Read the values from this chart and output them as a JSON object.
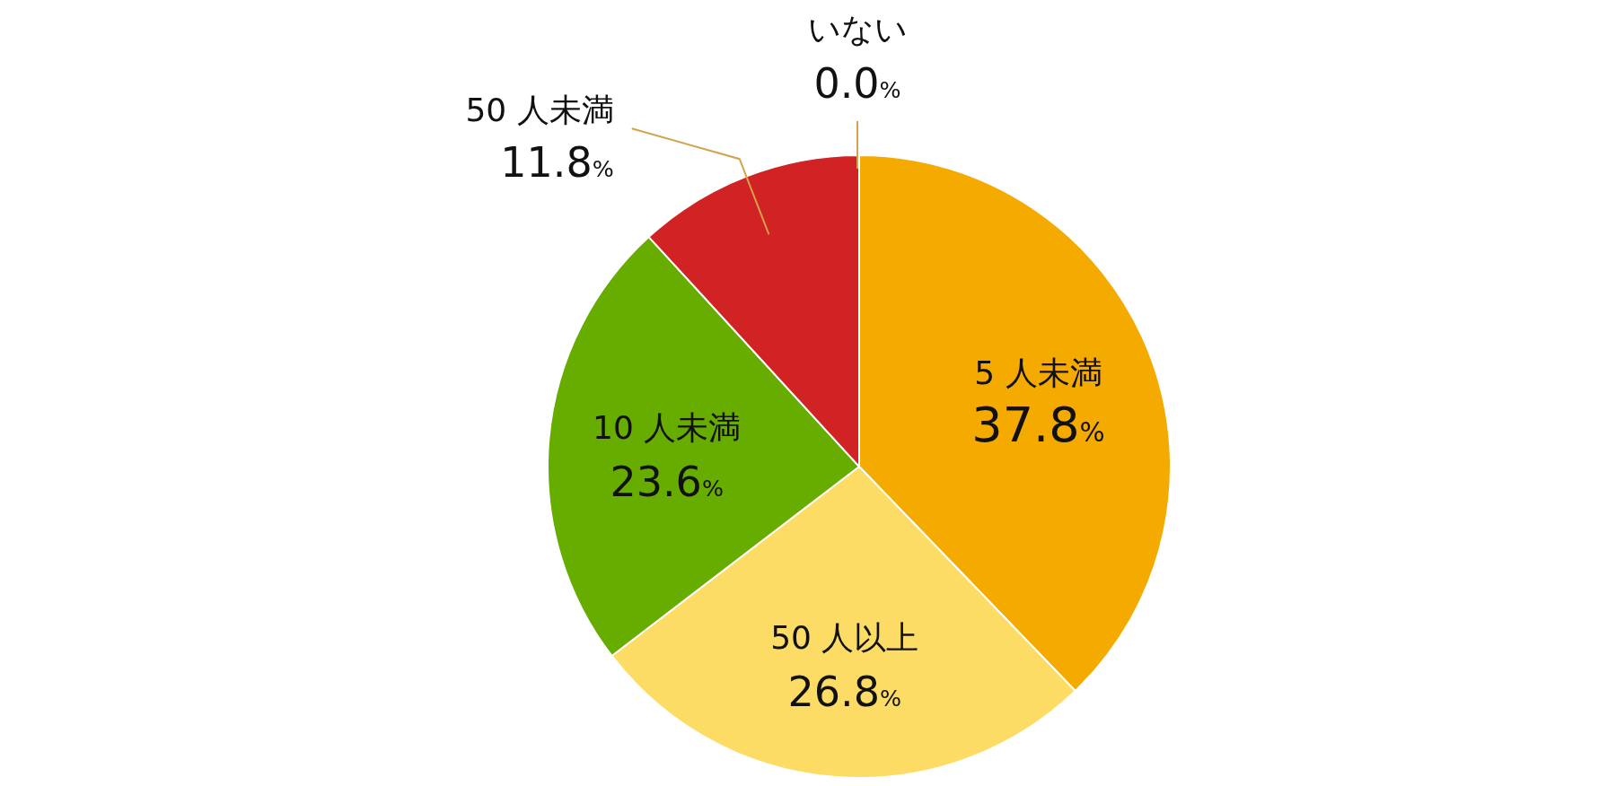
{
  "chart_data": {
    "type": "pie",
    "categories": [
      "5 人未満",
      "50 人以上",
      "10 人未満",
      "50 人未満",
      "いない"
    ],
    "values": [
      37.8,
      26.8,
      23.6,
      11.8,
      0.0
    ],
    "colors": [
      "#f5aa00",
      "#fddc66",
      "#66ad00",
      "#d12224",
      "#f7c55a"
    ],
    "value_labels": [
      "37.8%",
      "26.8%",
      "23.6%",
      "11.8%",
      "0.0%"
    ]
  }
}
